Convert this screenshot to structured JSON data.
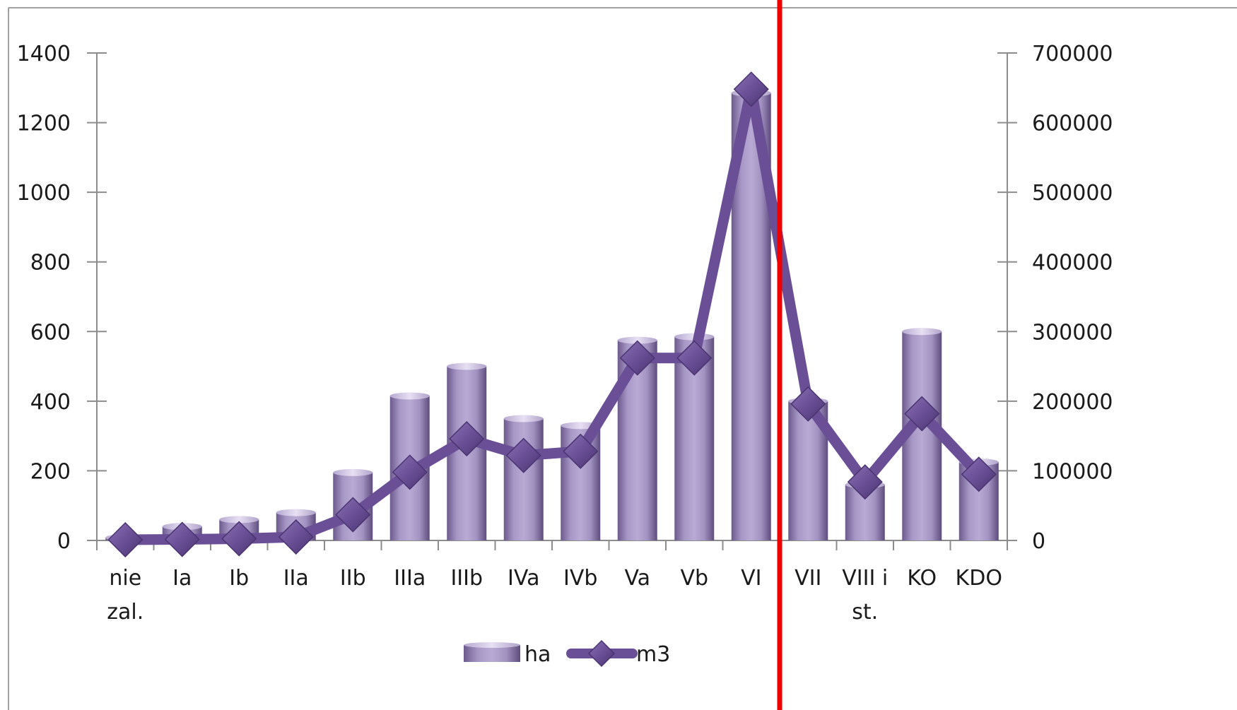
{
  "chart_data": {
    "type": "bar",
    "categories": [
      "nie zal.",
      "Ia",
      "Ib",
      "IIa",
      "IIb",
      "IIIa",
      "IIIb",
      "IVa",
      "IVb",
      "Va",
      "Vb",
      "VI",
      "VII",
      "VIII i st.",
      "KO",
      "KDO"
    ],
    "series": [
      {
        "name": "ha",
        "type": "bar",
        "axis": "left",
        "color": "#9b8bb9",
        "values": [
          8,
          40,
          60,
          80,
          195,
          415,
          500,
          350,
          330,
          575,
          585,
          1285,
          400,
          160,
          600,
          225
        ]
      },
      {
        "name": "m3",
        "type": "line",
        "axis": "right",
        "color": "#6a4f96",
        "marker": "diamond",
        "values": [
          1000,
          1500,
          2500,
          5000,
          37000,
          98000,
          146000,
          122000,
          128000,
          262000,
          262000,
          648000,
          196000,
          84000,
          182000,
          95000
        ]
      }
    ],
    "y_left": {
      "min": 0,
      "max": 1400,
      "step": 200,
      "ticks": [
        "0",
        "200",
        "400",
        "600",
        "800",
        "1000",
        "1200",
        "1400"
      ]
    },
    "y_right": {
      "min": 0,
      "max": 700000,
      "step": 100000,
      "ticks": [
        "0",
        "100000",
        "200000",
        "300000",
        "400000",
        "500000",
        "600000",
        "700000"
      ]
    },
    "legend_position": "bottom",
    "grid": false,
    "title": "",
    "xlabel": "",
    "ylabel": "",
    "colors": {
      "axis": "#8c8c8c",
      "frame": "#a0a0a0",
      "overlay_line": "#ee0000"
    }
  }
}
